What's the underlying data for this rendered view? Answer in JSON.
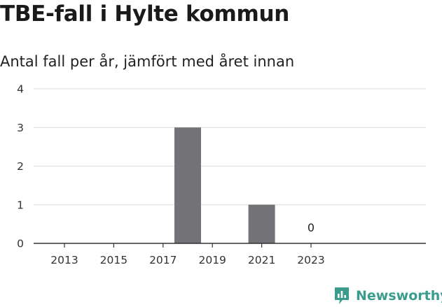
{
  "chart_data": {
    "type": "bar",
    "title": "TBE-fall i Hylte kommun",
    "subtitle": "Antal fall per år, jämfört med året innan",
    "categories": [
      "2013",
      "2014",
      "2015",
      "2016",
      "2017",
      "2018",
      "2019",
      "2020",
      "2021",
      "2022",
      "2023"
    ],
    "values": [
      0,
      0,
      0,
      0,
      0,
      3,
      0,
      0,
      1,
      0,
      0
    ],
    "x_tick_labels": [
      "2013",
      "2015",
      "2017",
      "2019",
      "2021",
      "2023"
    ],
    "y_ticks": [
      "0",
      "1",
      "2",
      "3",
      "4"
    ],
    "ylim": [
      0,
      4
    ],
    "grid": true,
    "data_labels": [
      {
        "category": "2023",
        "text": "0"
      }
    ],
    "bar_color": "#737277"
  },
  "brand": {
    "name": "Newsworthy",
    "color": "#3a9c8c",
    "icon": "bar-chart-badge-icon"
  }
}
